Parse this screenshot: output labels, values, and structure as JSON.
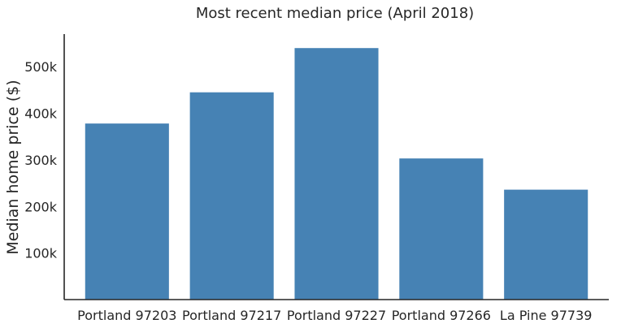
{
  "chart_data": {
    "type": "bar",
    "title": "Most recent median price (April 2018)",
    "xlabel": "",
    "ylabel": "Median home price ($)",
    "categories": [
      "Portland 97203",
      "Portland 97217",
      "Portland 97227",
      "Portland 97266",
      "La Pine 97739"
    ],
    "values": [
      378000,
      445000,
      540000,
      303000,
      236000
    ],
    "ylim": [
      0,
      570000
    ],
    "yticks": [
      100000,
      200000,
      300000,
      400000,
      500000
    ],
    "ytick_labels": [
      "100k",
      "200k",
      "300k",
      "400k",
      "500k"
    ],
    "bar_color": "#4682b4",
    "grid": false,
    "legend": "none"
  }
}
